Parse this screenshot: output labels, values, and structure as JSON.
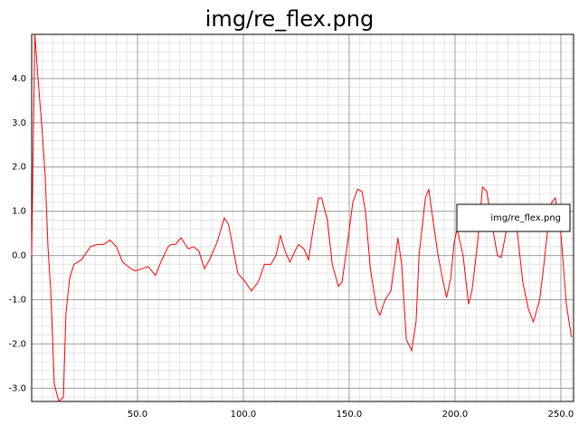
{
  "chart_data": {
    "type": "line",
    "title": "img/re_flex.png",
    "x": [
      0,
      1.5,
      3,
      5,
      6.4,
      7.7,
      9,
      10.7,
      12.8,
      15,
      16.2,
      18,
      20,
      23.5,
      27.8,
      31,
      34,
      37,
      40,
      43,
      47,
      49,
      55,
      58.5,
      61,
      64.5,
      66,
      68,
      70.5,
      74,
      76.5,
      79,
      81.6,
      84,
      87.6,
      91,
      93,
      95,
      97.4,
      101,
      103.8,
      107,
      110,
      113,
      115.4,
      117.5,
      119.7,
      122,
      124.4,
      126,
      128.6,
      130.8,
      133,
      135.5,
      137,
      139.7,
      142,
      144.9,
      146.6,
      149,
      151.7,
      154,
      156,
      157.7,
      160,
      163,
      164.5,
      167,
      169.7,
      171.4,
      173,
      174.8,
      177,
      179.5,
      181.6,
      183,
      186,
      187.6,
      189,
      192,
      194.4,
      196,
      198,
      199.6,
      201,
      203.8,
      206.4,
      208,
      210.7,
      213,
      215,
      217.5,
      220,
      221.8,
      224.4,
      227,
      229.5,
      232,
      234.6,
      237,
      240,
      242,
      244,
      245.7,
      247.4,
      250,
      252.6,
      255
    ],
    "series": [
      {
        "name": "img/re_flex.png",
        "color": "#ff0000",
        "values": [
          0.0,
          5.0,
          4.0,
          2.8,
          1.8,
          0.2,
          -0.8,
          -2.9,
          -3.3,
          -3.2,
          -1.3,
          -0.5,
          -0.2,
          -0.1,
          0.2,
          0.25,
          0.25,
          0.35,
          0.2,
          -0.15,
          -0.3,
          -0.35,
          -0.25,
          -0.45,
          -0.15,
          0.2,
          0.25,
          0.25,
          0.4,
          0.15,
          0.2,
          0.1,
          -0.3,
          -0.1,
          0.3,
          0.85,
          0.7,
          0.2,
          -0.4,
          -0.6,
          -0.8,
          -0.6,
          -0.2,
          -0.2,
          0.0,
          0.45,
          0.1,
          -0.15,
          0.1,
          0.25,
          0.15,
          -0.1,
          0.6,
          1.3,
          1.3,
          0.8,
          -0.2,
          -0.7,
          -0.6,
          0.2,
          1.2,
          1.5,
          1.45,
          1.0,
          -0.3,
          -1.2,
          -1.35,
          -1.0,
          -0.8,
          -0.2,
          0.4,
          -0.2,
          -1.9,
          -2.15,
          -1.5,
          0.0,
          1.3,
          1.5,
          1.0,
          0.0,
          -0.6,
          -0.95,
          -0.5,
          0.3,
          0.6,
          0.0,
          -1.1,
          -0.8,
          0.3,
          1.55,
          1.45,
          0.7,
          0.0,
          -0.05,
          0.6,
          0.9,
          0.5,
          -0.6,
          -1.2,
          -1.5,
          -1.0,
          -0.2,
          0.7,
          1.2,
          1.3,
          0.5,
          -1.1,
          -1.85
        ]
      }
    ],
    "xlim": [
      0,
      256
    ],
    "ylim": [
      -3.3,
      5.0
    ],
    "xticks": [
      {
        "value": 50,
        "label": "50.0"
      },
      {
        "value": 100,
        "label": "100.0"
      },
      {
        "value": 150,
        "label": "150.0"
      },
      {
        "value": 200,
        "label": "200.0"
      },
      {
        "value": 250,
        "label": "250.0"
      }
    ],
    "yticks": [
      {
        "value": -3,
        "label": "-3.0"
      },
      {
        "value": -2,
        "label": "-2.0"
      },
      {
        "value": -1,
        "label": "-1.0"
      },
      {
        "value": 0,
        "label": "0.0"
      },
      {
        "value": 1,
        "label": "1.0"
      },
      {
        "value": 2,
        "label": "2.0"
      },
      {
        "value": 3,
        "label": "3.0"
      },
      {
        "value": 4,
        "label": "4.0"
      }
    ],
    "grid": true,
    "legend": "right"
  }
}
